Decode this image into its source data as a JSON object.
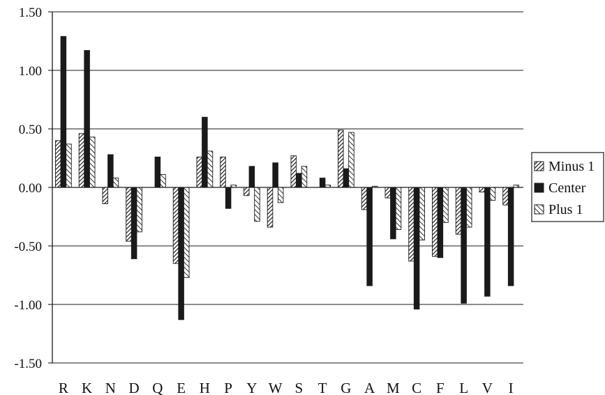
{
  "chart_data": {
    "type": "bar",
    "categories": [
      "R",
      "K",
      "N",
      "D",
      "Q",
      "E",
      "H",
      "P",
      "Y",
      "W",
      "S",
      "T",
      "G",
      "A",
      "M",
      "C",
      "F",
      "L",
      "V",
      "I"
    ],
    "series": [
      {
        "name": "Minus 1",
        "pattern": "hatched",
        "values": [
          0.4,
          0.46,
          -0.14,
          -0.46,
          0.0,
          -0.65,
          0.26,
          0.26,
          -0.07,
          -0.34,
          0.27,
          0.0,
          0.49,
          -0.19,
          -0.09,
          -0.63,
          -0.59,
          -0.4,
          -0.04,
          -0.15
        ]
      },
      {
        "name": "Center",
        "pattern": "solid",
        "values": [
          1.29,
          1.17,
          0.28,
          -0.61,
          0.26,
          -1.13,
          0.6,
          -0.18,
          0.18,
          0.21,
          0.12,
          0.08,
          0.16,
          -0.84,
          -0.44,
          -1.04,
          -0.6,
          -0.99,
          -0.93,
          -0.84
        ]
      },
      {
        "name": "Plus 1",
        "pattern": "hatched-light",
        "values": [
          0.37,
          0.43,
          0.08,
          -0.38,
          0.11,
          -0.77,
          0.31,
          0.02,
          -0.29,
          -0.13,
          0.18,
          0.02,
          0.47,
          0.01,
          -0.36,
          -0.45,
          -0.3,
          -0.34,
          -0.11,
          0.02
        ]
      }
    ],
    "yticks": [
      "1.50",
      "1.00",
      "0.50",
      "0.00",
      "-0.50",
      "-1.00",
      "-1.50"
    ],
    "ylim": [
      -1.5,
      1.5
    ],
    "grid": true,
    "legend_position": "right",
    "title": "",
    "xlabel": "",
    "ylabel": "",
    "colors": {
      "bar_dark": "#1a1a1a",
      "hatch_line": "#1a1a1a",
      "axis": "#1a1a1a"
    }
  }
}
